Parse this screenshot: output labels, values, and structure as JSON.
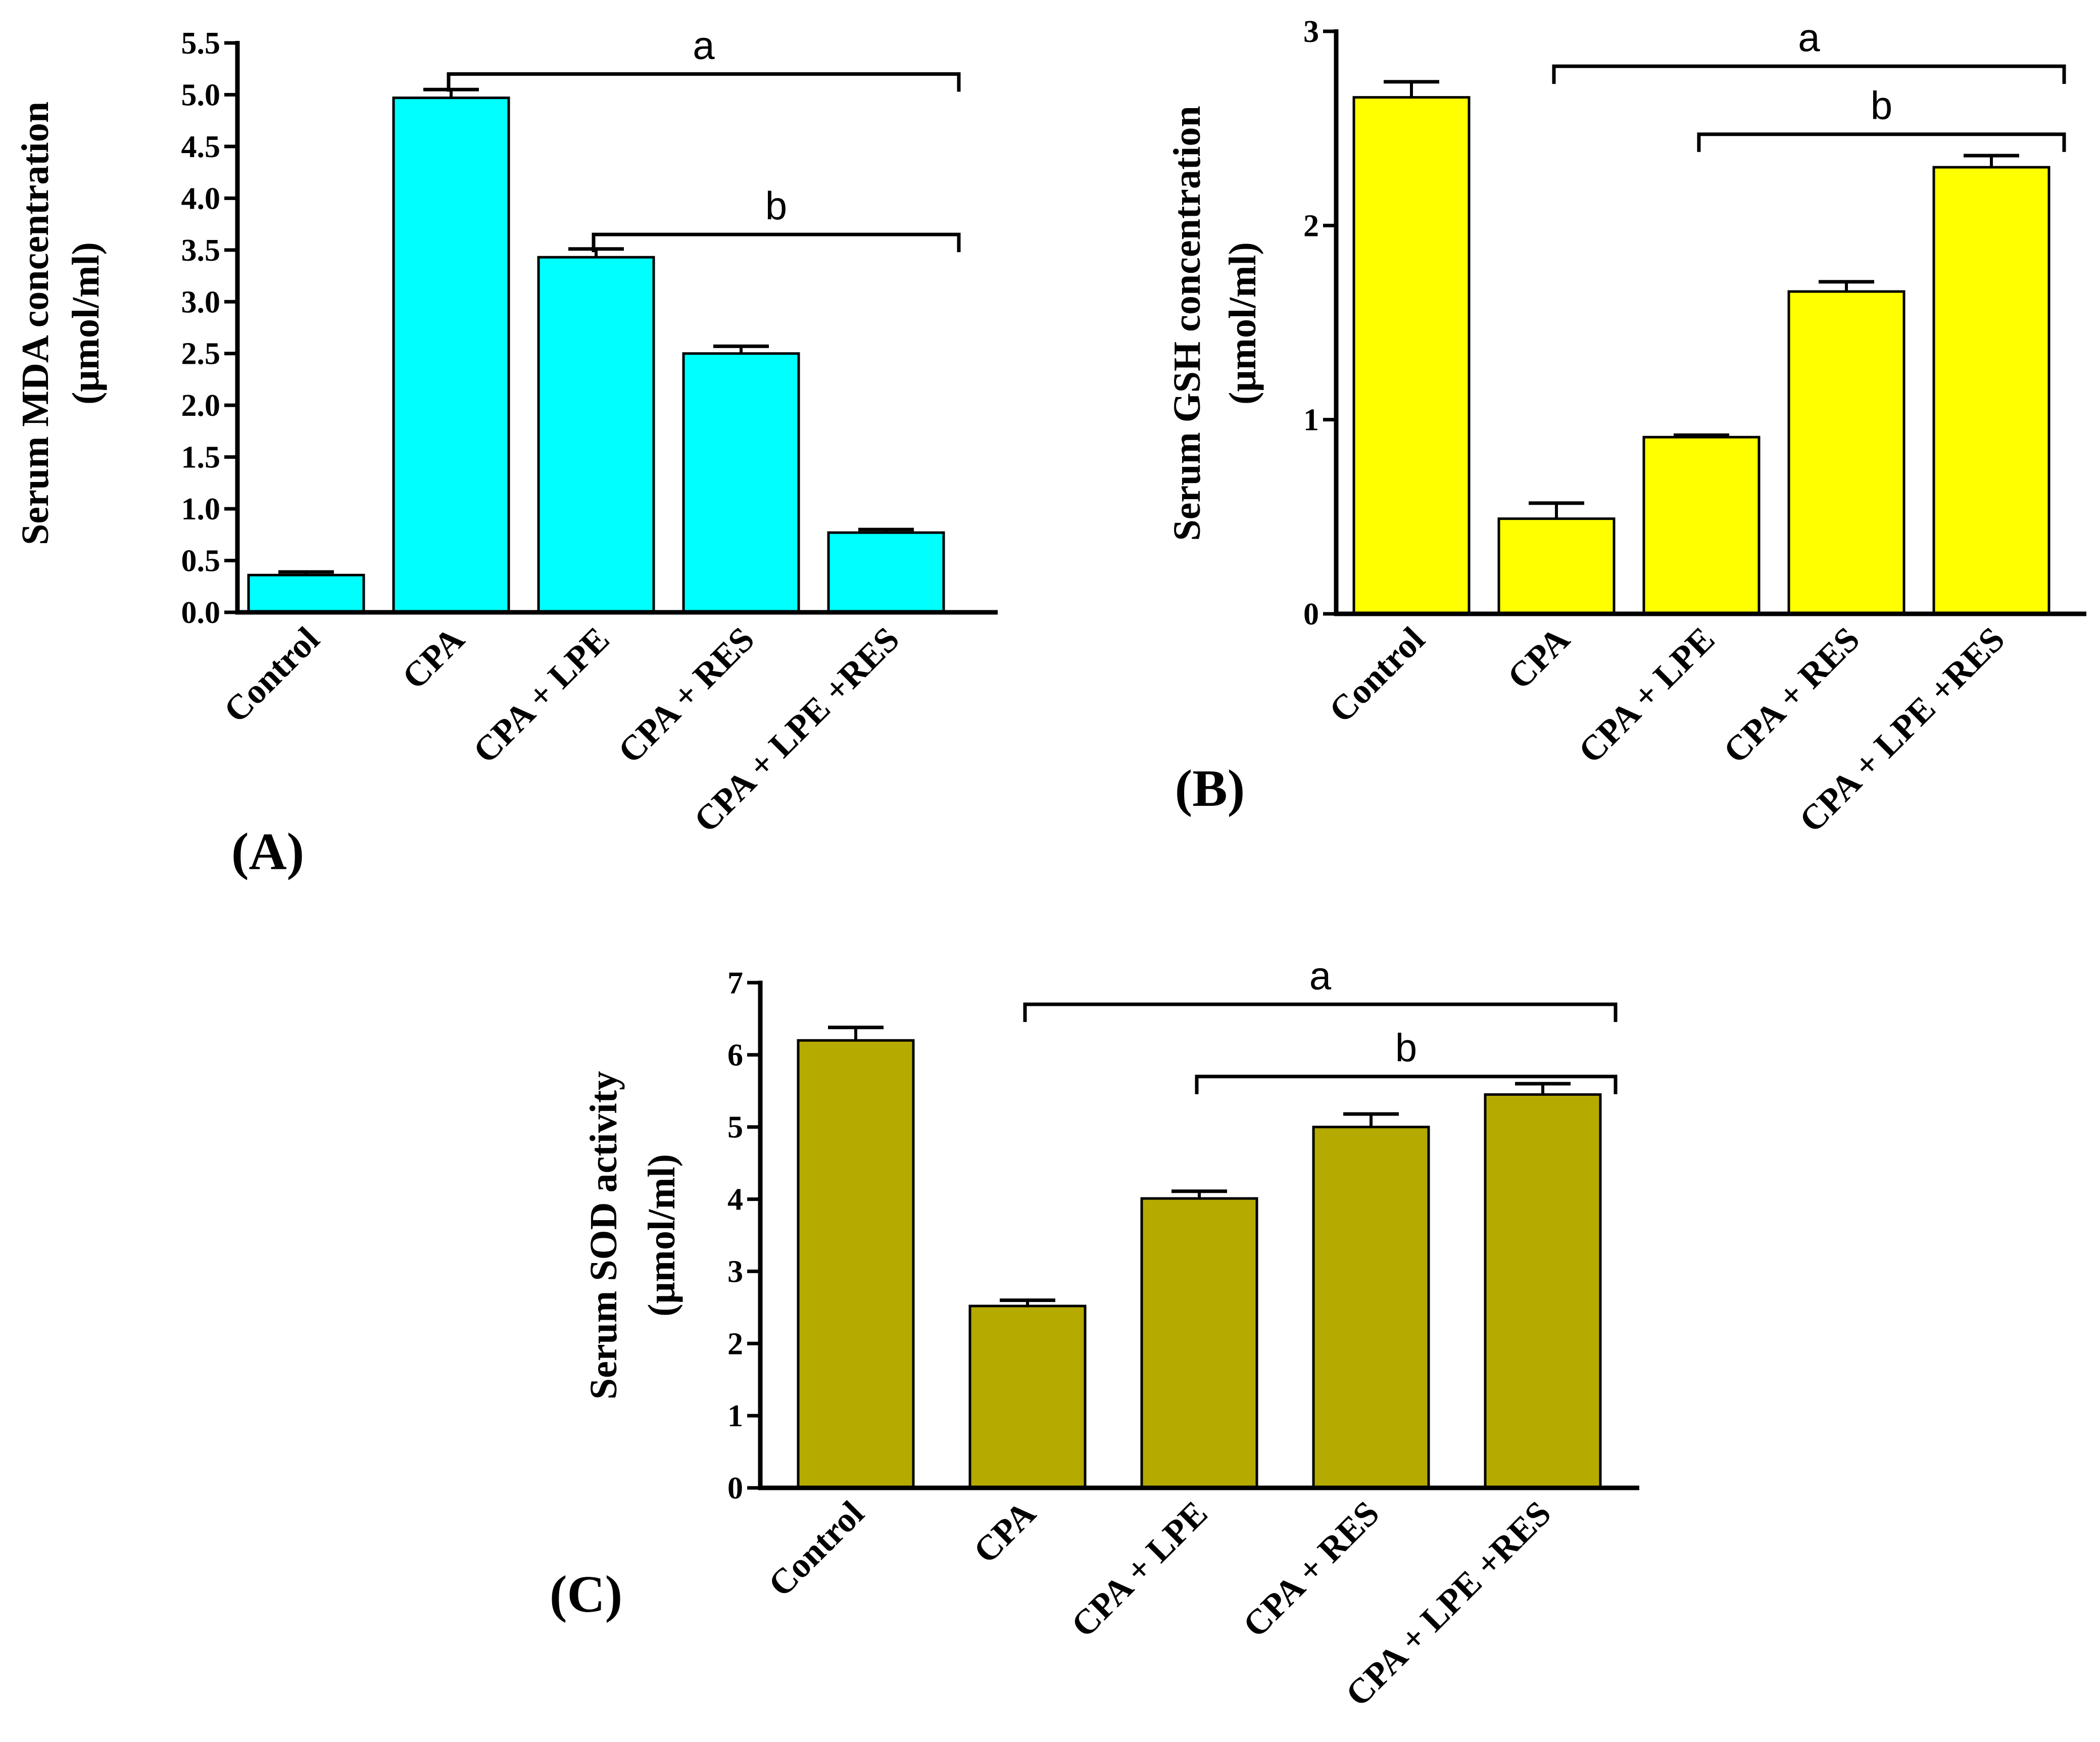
{
  "chart_data": [
    {
      "type": "bar",
      "panel_label": "(A)",
      "ylabel_line1": "Serum MDA concentration",
      "ylabel_line2": "(μmol/ml)",
      "categories": [
        "Control",
        "CPA",
        "CPA + LPE",
        "CPA + RES",
        "CPA + LPE +RES"
      ],
      "values": [
        0.36,
        4.97,
        3.43,
        2.5,
        0.77
      ],
      "errors": [
        0.03,
        0.08,
        0.08,
        0.07,
        0.03
      ],
      "ylim": [
        0,
        5.5
      ],
      "yticks": [
        "0.0",
        "0.5",
        "1.0",
        "1.5",
        "2.0",
        "2.5",
        "3.0",
        "3.5",
        "4.0",
        "4.5",
        "5.0",
        "5.5"
      ],
      "bar_color": "#00ffff",
      "significance": [
        {
          "label": "a",
          "from": 1,
          "to": 4,
          "y": 5.2
        },
        {
          "label": "b",
          "from": 2,
          "to": 4,
          "y": 3.65
        }
      ]
    },
    {
      "type": "bar",
      "panel_label": "(B)",
      "ylabel_line1": "Serum GSH concentration",
      "ylabel_line2": "(μmol/ml)",
      "categories": [
        "Control",
        "CPA",
        "CPA + LPE",
        "CPA + RES",
        "CPA + LPE +RES"
      ],
      "values": [
        2.66,
        0.49,
        0.91,
        1.66,
        2.3
      ],
      "errors": [
        0.08,
        0.08,
        0.01,
        0.05,
        0.06
      ],
      "ylim": [
        0,
        3
      ],
      "yticks": [
        "0",
        "1",
        "2",
        "3"
      ],
      "bar_color": "#ffff00",
      "significance": [
        {
          "label": "a",
          "from": 1,
          "to": 4,
          "y": 2.82
        },
        {
          "label": "b",
          "from": 2,
          "to": 4,
          "y": 2.47
        }
      ]
    },
    {
      "type": "bar",
      "panel_label": "(C)",
      "ylabel_line1": "Serum SOD activity",
      "ylabel_line2": "(μmol/ml)",
      "categories": [
        "Control",
        "CPA",
        "CPA + LPE",
        "CPA + RES",
        "CPA + LPE +RES"
      ],
      "values": [
        6.2,
        2.52,
        4.01,
        5.0,
        5.45
      ],
      "errors": [
        0.18,
        0.08,
        0.1,
        0.18,
        0.15
      ],
      "ylim": [
        0,
        7
      ],
      "yticks": [
        "0",
        "1",
        "2",
        "3",
        "4",
        "5",
        "6",
        "7"
      ],
      "bar_color": "#b5aa00",
      "significance": [
        {
          "label": "a",
          "from": 1,
          "to": 4,
          "y": 6.7
        },
        {
          "label": "b",
          "from": 2,
          "to": 4,
          "y": 5.7
        }
      ]
    }
  ]
}
